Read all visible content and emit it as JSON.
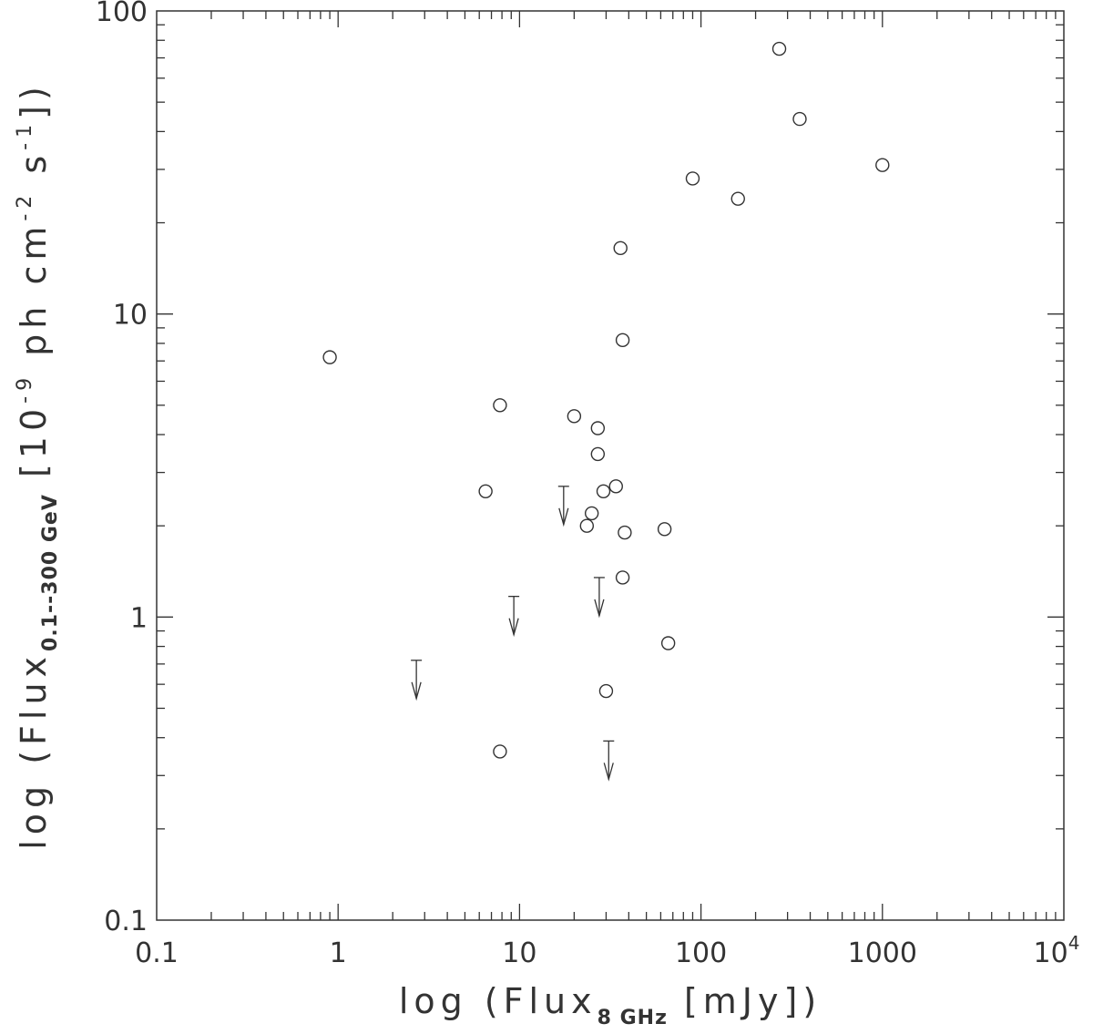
{
  "chart_data": {
    "type": "scatter",
    "x_scale": "log",
    "y_scale": "log",
    "xlim": [
      0.1,
      10000
    ],
    "ylim": [
      0.1,
      100
    ],
    "grid": false,
    "x_ticks": [
      {
        "value": 0.1,
        "label": "0.1"
      },
      {
        "value": 1,
        "label": "1"
      },
      {
        "value": 10,
        "label": "10"
      },
      {
        "value": 100,
        "label": "100"
      },
      {
        "value": 1000,
        "label": "1000"
      }
    ],
    "x_last_tick": {
      "value": 10000,
      "base": "10",
      "exp": "4"
    },
    "y_ticks": [
      {
        "value": 0.1,
        "label": "0.1"
      },
      {
        "value": 1,
        "label": "1"
      },
      {
        "value": 10,
        "label": "10"
      },
      {
        "value": 100,
        "label": "100"
      }
    ],
    "xlabel": {
      "pre": "log (Flux",
      "sub": "8 GHz",
      "post": " [mJy])"
    },
    "ylabel": {
      "pre": "log (Flux",
      "sub": "0.1--300 GeV",
      "mid1": " [10",
      "sup1": "-9",
      "mid2": " ph cm",
      "sup2": "-2",
      "mid3": " s",
      "sup3": "-1",
      "post": "])"
    },
    "detections": [
      {
        "x": 0.9,
        "y": 7.2
      },
      {
        "x": 6.5,
        "y": 2.6
      },
      {
        "x": 7.8,
        "y": 5.0
      },
      {
        "x": 7.8,
        "y": 0.36
      },
      {
        "x": 20,
        "y": 4.6
      },
      {
        "x": 23.5,
        "y": 2.0
      },
      {
        "x": 25,
        "y": 2.2
      },
      {
        "x": 27,
        "y": 4.2
      },
      {
        "x": 27,
        "y": 3.45
      },
      {
        "x": 29,
        "y": 2.6
      },
      {
        "x": 30,
        "y": 0.57
      },
      {
        "x": 34,
        "y": 2.7
      },
      {
        "x": 36,
        "y": 16.5
      },
      {
        "x": 37,
        "y": 8.2
      },
      {
        "x": 37,
        "y": 1.35
      },
      {
        "x": 38,
        "y": 1.9
      },
      {
        "x": 63,
        "y": 1.95
      },
      {
        "x": 66,
        "y": 0.82
      },
      {
        "x": 90,
        "y": 28
      },
      {
        "x": 160,
        "y": 24
      },
      {
        "x": 270,
        "y": 75
      },
      {
        "x": 350,
        "y": 44
      },
      {
        "x": 1000,
        "y": 31
      }
    ],
    "upper_limits": [
      {
        "x": 2.7,
        "y": 0.72
      },
      {
        "x": 9.3,
        "y": 1.17
      },
      {
        "x": 17.5,
        "y": 2.7
      },
      {
        "x": 27.5,
        "y": 1.35
      },
      {
        "x": 31,
        "y": 0.39
      }
    ]
  }
}
